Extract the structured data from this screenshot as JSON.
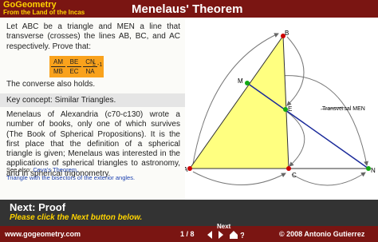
{
  "header": {
    "logo": "GoGeometry",
    "tagline": "From the Land of the Incas",
    "title": "Menelaus' Theorem"
  },
  "intro": "Let ABC be a triangle and MEN a line that transverse (crosses) the lines AB, BC, and AC respectively. Prove that:",
  "formula": {
    "fractions": [
      [
        "AM",
        "MB"
      ],
      [
        "BE",
        "EC"
      ],
      [
        "CN",
        "NA"
      ]
    ],
    "result": "= -1"
  },
  "converse": "The converse also holds.",
  "key_concept": "Key concept: Similar Triangles.",
  "history": "Menelaus of Alexandria (c70-c130) wrote a number of books, only one of which survives (The Book of Spherical Propositions). It is the first place that the definition of a spherical triangle is given; Menelaus was interested in the applications of spherical triangles to astronomy, and in spherical trigonometry.",
  "see_also": {
    "label": "See also:",
    "links": [
      "Ceva's Theorem,",
      "Triangle with the bisectors of the exterior angles."
    ]
  },
  "diagram": {
    "points": {
      "A": "A",
      "B": "B",
      "C": "C",
      "M": "M",
      "E": "E",
      "N": "N"
    },
    "annotation": "Transversal MEN"
  },
  "next": {
    "title": "Next: Proof",
    "instruction": "Please click the Next button below."
  },
  "footer": {
    "site": "www.gogeometry.com",
    "page": "1 / 8",
    "next": "Next",
    "copyright": "© 2008 Antonio Gutierrez"
  }
}
